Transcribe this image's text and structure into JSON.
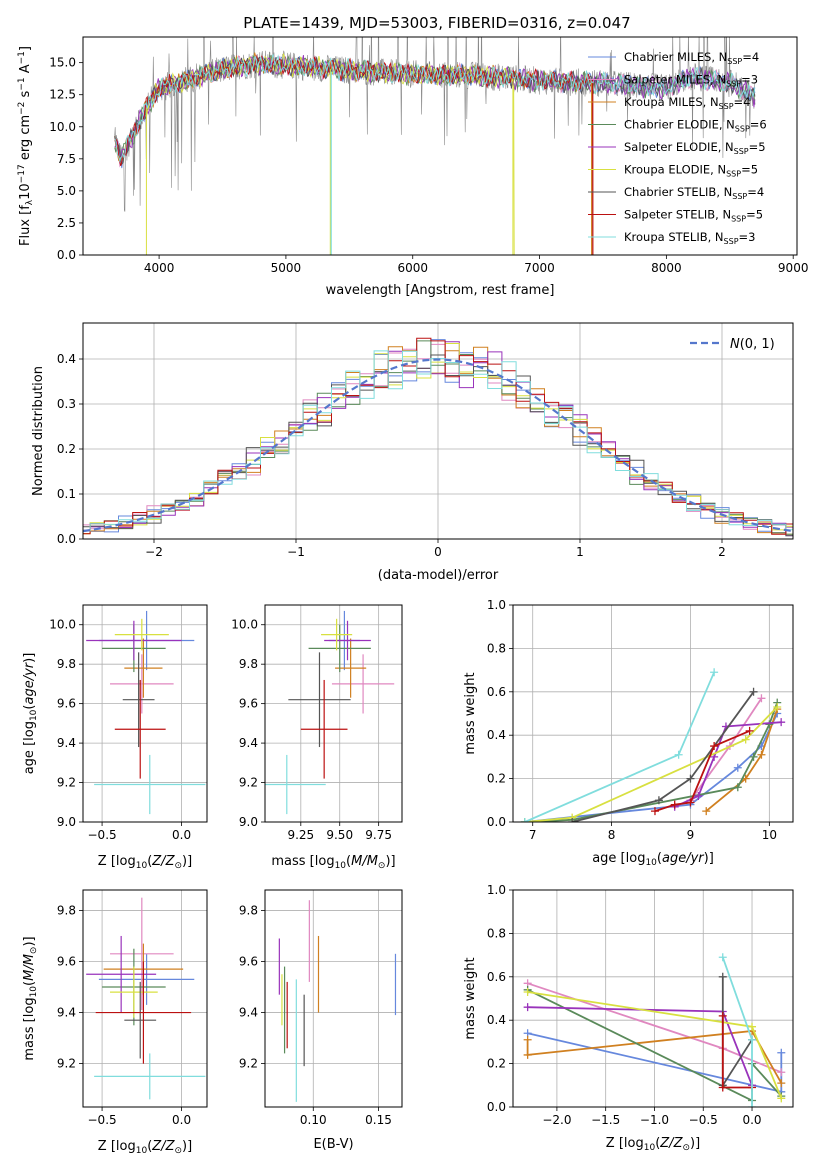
{
  "figure_title": "PLATE=1439, MJD=53003, FIBERID=0316, z=0.047",
  "colors": [
    "#6688dd",
    "#e088c0",
    "#d08020",
    "#5a8a5a",
    "#9933bb",
    "#d8e040",
    "#555555",
    "#bb1111",
    "#80dddd"
  ],
  "model_names": [
    "Chabrier MILES",
    "Salpeter MILES",
    "Kroupa MILES",
    "Chabrier ELODIE",
    "Salpeter ELODIE",
    "Kroupa ELODIE",
    "Chabrier STELIB",
    "Salpeter STELIB",
    "Kroupa STELIB"
  ],
  "chart_data": [
    {
      "id": "spectrum",
      "type": "line",
      "xlabel": "wavelength [Angstrom, rest frame]",
      "ylabel_parts": [
        "Flux [f",
        "λ",
        "10",
        "−17",
        " erg cm",
        "−2",
        " s",
        "−1",
        " A",
        "−1",
        "]"
      ],
      "xlim": [
        3400,
        9030
      ],
      "ylim": [
        0,
        17
      ],
      "xticks": [
        4000,
        5000,
        6000,
        7000,
        8000,
        9000
      ],
      "yticks": [
        0.0,
        2.5,
        5.0,
        7.5,
        10.0,
        12.5,
        15.0
      ],
      "ytick_labels": [
        "0.0",
        "2.5",
        "5.0",
        "7.5",
        "10.0",
        "12.5",
        "15.0"
      ],
      "legend_position": "right",
      "legend": [
        {
          "name": "Chabrier MILES, N",
          "sub": "SSP",
          "val": "=4"
        },
        {
          "name": "Salpeter MILES, N",
          "sub": "SSP",
          "val": "=3"
        },
        {
          "name": "Kroupa MILES, N",
          "sub": "SSP",
          "val": "=4"
        },
        {
          "name": "Chabrier ELODIE, N",
          "sub": "SSP",
          "val": "=6"
        },
        {
          "name": "Salpeter ELODIE, N",
          "sub": "SSP",
          "val": "=5"
        },
        {
          "name": "Kroupa ELODIE, N",
          "sub": "SSP",
          "val": "=5"
        },
        {
          "name": "Chabrier STELIB, N",
          "sub": "SSP",
          "val": "=4"
        },
        {
          "name": "Salpeter STELIB, N",
          "sub": "SSP",
          "val": "=5"
        },
        {
          "name": "Kroupa STELIB, N",
          "sub": "SSP",
          "val": "=3"
        }
      ],
      "data_color": "#888888",
      "data_range": [
        3650,
        8700
      ],
      "model_ranges": [
        [
          3650,
          8700
        ],
        [
          3650,
          8700
        ],
        [
          3650,
          7420
        ],
        [
          3650,
          8700
        ],
        [
          3650,
          8700
        ],
        [
          3900,
          6800
        ],
        [
          3650,
          8700
        ],
        [
          3650,
          7420
        ],
        [
          3650,
          8700
        ]
      ],
      "continuum": [
        [
          3650,
          9.0
        ],
        [
          3700,
          7.5
        ],
        [
          3800,
          9.5
        ],
        [
          3900,
          11.5
        ],
        [
          4000,
          13.0
        ],
        [
          4200,
          13.6
        ],
        [
          4400,
          14.2
        ],
        [
          4600,
          14.7
        ],
        [
          4800,
          14.9
        ],
        [
          5000,
          14.8
        ],
        [
          5500,
          14.4
        ],
        [
          6000,
          14.1
        ],
        [
          6500,
          14.0
        ],
        [
          7000,
          13.6
        ],
        [
          7500,
          13.4
        ],
        [
          8000,
          13.0
        ],
        [
          8200,
          13.9
        ],
        [
          8500,
          13.4
        ],
        [
          8700,
          12.4
        ]
      ],
      "drops": [
        [
          5350,
          5360,
          5
        ],
        [
          6790,
          6800,
          5
        ],
        [
          7410,
          7420,
          2
        ],
        [
          3900,
          3910,
          5
        ]
      ]
    },
    {
      "id": "residuals",
      "type": "bar",
      "xlabel": "(data-model)/error",
      "ylabel": "Normed distribution",
      "xlim": [
        -2.5,
        2.5
      ],
      "ylim": [
        0,
        0.48
      ],
      "xticks": [
        -2,
        -1,
        0,
        1,
        2
      ],
      "xtick_labels": [
        "−2",
        "−1",
        "0",
        "1",
        "2"
      ],
      "yticks": [
        0.0,
        0.1,
        0.2,
        0.3,
        0.4
      ],
      "ytick_labels": [
        "0.0",
        "0.1",
        "0.2",
        "0.3",
        "0.4"
      ],
      "grid": true,
      "bin_width": 0.1,
      "legend_position": "top-right",
      "legend": [
        {
          "name": "N(0,1)"
        }
      ],
      "reference_curve": {
        "type": "gaussian",
        "mean": 0,
        "sigma": 1,
        "color": "#5577cc"
      }
    },
    {
      "id": "age_vs_Z",
      "type": "errorbar",
      "xlabel": "Z [log10(Z/Z⊙)]",
      "ylabel": "age [log10(age/yr)]",
      "xlim": [
        -0.62,
        0.16
      ],
      "ylim": [
        9.0,
        10.1
      ],
      "xticks": [
        -0.5,
        0.0
      ],
      "xtick_labels": [
        "−0.5",
        "0.0"
      ],
      "yticks": [
        9.0,
        9.2,
        9.4,
        9.6,
        9.8,
        10.0
      ],
      "ytick_labels": [
        "9.0",
        "9.2",
        "9.4",
        "9.6",
        "9.8",
        "10.0"
      ],
      "grid": true,
      "points": [
        {
          "x": -0.22,
          "xerr": 0.3,
          "y": 9.92,
          "yerr": 0.15,
          "color": "#6688dd"
        },
        {
          "x": -0.25,
          "xerr": 0.2,
          "y": 9.7,
          "yerr": 0.15,
          "color": "#e088c0"
        },
        {
          "x": -0.24,
          "xerr": 0.12,
          "y": 9.78,
          "yerr": 0.15,
          "color": "#d08020"
        },
        {
          "x": -0.3,
          "xerr": 0.2,
          "y": 9.88,
          "yerr": 0.12,
          "color": "#5a8a5a"
        },
        {
          "x": -0.3,
          "xerr": 0.3,
          "y": 9.92,
          "yerr": 0.1,
          "color": "#9933bb"
        },
        {
          "x": -0.25,
          "xerr": 0.17,
          "y": 9.95,
          "yerr": 0.08,
          "color": "#d8e040"
        },
        {
          "x": -0.27,
          "xerr": 0.1,
          "y": 9.62,
          "yerr": 0.24,
          "color": "#555555"
        },
        {
          "x": -0.26,
          "xerr": 0.16,
          "y": 9.47,
          "yerr": 0.25,
          "color": "#bb1111"
        },
        {
          "x": -0.2,
          "xerr": 0.35,
          "y": 9.19,
          "yerr": 0.15,
          "color": "#80dddd"
        }
      ]
    },
    {
      "id": "age_vs_mass",
      "type": "errorbar",
      "xlabel": "mass [log10(M/M⊙)]",
      "ylabel": "",
      "xlim": [
        9.02,
        9.9
      ],
      "ylim": [
        9.0,
        10.1
      ],
      "xticks": [
        9.25,
        9.5,
        9.75
      ],
      "xtick_labels": [
        "9.25",
        "9.50",
        "9.75"
      ],
      "yticks": [
        9.0,
        9.2,
        9.4,
        9.6,
        9.8,
        10.0
      ],
      "ytick_labels": [
        "9.0",
        "9.2",
        "9.4",
        "9.6",
        "9.8",
        "10.0"
      ],
      "grid": true,
      "points": [
        {
          "x": 9.53,
          "xerr": 0.1,
          "y": 9.92,
          "yerr": 0.15,
          "color": "#6688dd"
        },
        {
          "x": 9.65,
          "xerr": 0.2,
          "y": 9.7,
          "yerr": 0.15,
          "color": "#e088c0"
        },
        {
          "x": 9.57,
          "xerr": 0.1,
          "y": 9.78,
          "yerr": 0.15,
          "color": "#d08020"
        },
        {
          "x": 9.5,
          "xerr": 0.2,
          "y": 9.88,
          "yerr": 0.12,
          "color": "#5a8a5a"
        },
        {
          "x": 9.55,
          "xerr": 0.15,
          "y": 9.92,
          "yerr": 0.1,
          "color": "#9933bb"
        },
        {
          "x": 9.48,
          "xerr": 0.1,
          "y": 9.95,
          "yerr": 0.08,
          "color": "#d8e040"
        },
        {
          "x": 9.37,
          "xerr": 0.2,
          "y": 9.62,
          "yerr": 0.24,
          "color": "#555555"
        },
        {
          "x": 9.4,
          "xerr": 0.15,
          "y": 9.47,
          "yerr": 0.25,
          "color": "#bb1111"
        },
        {
          "x": 9.16,
          "xerr": 0.25,
          "y": 9.19,
          "yerr": 0.15,
          "color": "#80dddd"
        }
      ]
    },
    {
      "id": "massweight_vs_age",
      "type": "line",
      "xlabel": "age [log10(age/yr)]",
      "ylabel": "mass weight",
      "xlim": [
        6.75,
        10.3
      ],
      "ylim": [
        0.0,
        1.0
      ],
      "xticks": [
        7,
        8,
        9,
        10
      ],
      "xtick_labels": [
        "7",
        "8",
        "9",
        "10"
      ],
      "yticks": [
        0.0,
        0.2,
        0.4,
        0.6,
        0.8,
        1.0
      ],
      "ytick_labels": [
        "0.0",
        "0.2",
        "0.4",
        "0.6",
        "0.8",
        "1.0"
      ],
      "grid": true,
      "series": [
        {
          "color": "#6688dd",
          "points": [
            [
              6.9,
              0.0
            ],
            [
              9.0,
              0.08
            ],
            [
              9.6,
              0.25
            ],
            [
              9.9,
              0.35
            ],
            [
              10.1,
              0.5
            ]
          ]
        },
        {
          "color": "#e088c0",
          "points": [
            [
              9.0,
              0.1
            ],
            [
              9.5,
              0.35
            ],
            [
              9.9,
              0.57
            ]
          ]
        },
        {
          "color": "#d08020",
          "points": [
            [
              9.2,
              0.05
            ],
            [
              9.7,
              0.2
            ],
            [
              9.9,
              0.31
            ],
            [
              10.1,
              0.52
            ]
          ]
        },
        {
          "color": "#5a8a5a",
          "points": [
            [
              6.9,
              0.0
            ],
            [
              7.5,
              0.01
            ],
            [
              9.6,
              0.16
            ],
            [
              9.8,
              0.3
            ],
            [
              10.0,
              0.45
            ],
            [
              10.1,
              0.55
            ]
          ]
        },
        {
          "color": "#9933bb",
          "points": [
            [
              8.8,
              0.07
            ],
            [
              9.1,
              0.12
            ],
            [
              9.3,
              0.3
            ],
            [
              9.45,
              0.44
            ],
            [
              10.15,
              0.46
            ]
          ]
        },
        {
          "color": "#d8e040",
          "points": [
            [
              6.9,
              0.0
            ],
            [
              7.5,
              0.02
            ],
            [
              9.7,
              0.38
            ],
            [
              10.1,
              0.53
            ]
          ]
        },
        {
          "color": "#555555",
          "points": [
            [
              7.5,
              0.0
            ],
            [
              8.6,
              0.1
            ],
            [
              9.0,
              0.2
            ],
            [
              9.8,
              0.6
            ]
          ]
        },
        {
          "color": "#bb1111",
          "points": [
            [
              8.55,
              0.05
            ],
            [
              8.8,
              0.08
            ],
            [
              9.0,
              0.09
            ],
            [
              9.3,
              0.35
            ],
            [
              9.75,
              0.42
            ]
          ]
        },
        {
          "color": "#80dddd",
          "points": [
            [
              6.9,
              0.0
            ],
            [
              8.85,
              0.31
            ],
            [
              9.3,
              0.69
            ]
          ]
        }
      ]
    },
    {
      "id": "mass_vs_Z",
      "type": "errorbar",
      "xlabel": "Z [log10(Z/Z⊙)]",
      "ylabel": "mass [log10(M/M⊙)]",
      "xlim": [
        -0.62,
        0.16
      ],
      "ylim": [
        9.03,
        9.88
      ],
      "xticks": [
        -0.5,
        0.0
      ],
      "xtick_labels": [
        "−0.5",
        "0.0"
      ],
      "yticks": [
        9.2,
        9.4,
        9.6,
        9.8
      ],
      "ytick_labels": [
        "9.2",
        "9.4",
        "9.6",
        "9.8"
      ],
      "grid": true,
      "points": [
        {
          "x": -0.22,
          "xerr": 0.3,
          "y": 9.53,
          "yerr": 0.1,
          "color": "#6688dd"
        },
        {
          "x": -0.25,
          "xerr": 0.2,
          "y": 9.63,
          "yerr": 0.22,
          "color": "#e088c0"
        },
        {
          "x": -0.24,
          "xerr": 0.25,
          "y": 9.57,
          "yerr": 0.1,
          "color": "#d08020"
        },
        {
          "x": -0.3,
          "xerr": 0.2,
          "y": 9.5,
          "yerr": 0.15,
          "color": "#5a8a5a"
        },
        {
          "x": -0.38,
          "xerr": 0.22,
          "y": 9.55,
          "yerr": 0.15,
          "color": "#9933bb"
        },
        {
          "x": -0.3,
          "xerr": 0.15,
          "y": 9.48,
          "yerr": 0.1,
          "color": "#d8e040"
        },
        {
          "x": -0.26,
          "xerr": 0.1,
          "y": 9.37,
          "yerr": 0.15,
          "color": "#555555"
        },
        {
          "x": -0.24,
          "xerr": 0.3,
          "y": 9.4,
          "yerr": 0.2,
          "color": "#bb1111"
        },
        {
          "x": -0.2,
          "xerr": 0.35,
          "y": 9.15,
          "yerr": 0.09,
          "color": "#80dddd"
        }
      ]
    },
    {
      "id": "mass_vs_EBV",
      "type": "errorbar",
      "xlabel": "E(B-V)",
      "ylabel": "",
      "xlim": [
        0.063,
        0.168
      ],
      "ylim": [
        9.03,
        9.88
      ],
      "xticks": [
        0.1,
        0.15
      ],
      "xtick_labels": [
        "0.10",
        "0.15"
      ],
      "yticks": [
        9.2,
        9.4,
        9.6,
        9.8
      ],
      "ytick_labels": [
        "9.2",
        "9.4",
        "9.6",
        "9.8"
      ],
      "grid": true,
      "points": [
        {
          "x": 0.163,
          "y": 9.51,
          "yerr": 0.12,
          "color": "#6688dd"
        },
        {
          "x": 0.097,
          "y": 9.68,
          "yerr": 0.16,
          "color": "#e088c0"
        },
        {
          "x": 0.104,
          "y": 9.55,
          "yerr": 0.15,
          "color": "#d08020"
        },
        {
          "x": 0.078,
          "y": 9.41,
          "yerr": 0.17,
          "color": "#5a8a5a"
        },
        {
          "x": 0.074,
          "y": 9.58,
          "yerr": 0.11,
          "color": "#9933bb"
        },
        {
          "x": 0.076,
          "y": 9.45,
          "yerr": 0.1,
          "color": "#d8e040"
        },
        {
          "x": 0.093,
          "y": 9.33,
          "yerr": 0.14,
          "color": "#555555"
        },
        {
          "x": 0.08,
          "y": 9.39,
          "yerr": 0.13,
          "color": "#bb1111"
        },
        {
          "x": 0.087,
          "y": 9.29,
          "yerr": 0.24,
          "color": "#80dddd"
        }
      ]
    },
    {
      "id": "massweight_vs_Z",
      "type": "line",
      "xlabel": "Z [log10(Z/Z⊙)]",
      "ylabel": "mass weight",
      "xlim": [
        -2.45,
        0.42
      ],
      "ylim": [
        0.0,
        1.0
      ],
      "xticks": [
        -2.0,
        -1.5,
        -1.0,
        -0.5,
        0.0
      ],
      "xtick_labels": [
        "−2.0",
        "−1.5",
        "−1.0",
        "−0.5",
        "0.0"
      ],
      "yticks": [
        0.0,
        0.2,
        0.4,
        0.6,
        0.8,
        1.0
      ],
      "ytick_labels": [
        "0.0",
        "0.2",
        "0.4",
        "0.6",
        "0.8",
        "1.0"
      ],
      "grid": true,
      "series": [
        {
          "color": "#6688dd",
          "points": [
            [
              -2.3,
              0.34
            ],
            [
              0.3,
              0.07
            ],
            [
              0.3,
              0.25
            ]
          ]
        },
        {
          "color": "#e088c0",
          "points": [
            [
              -2.3,
              0.57
            ],
            [
              -0.3,
              0.27
            ],
            [
              0.3,
              0.16
            ]
          ]
        },
        {
          "color": "#d08020",
          "points": [
            [
              -2.3,
              0.31
            ],
            [
              -2.3,
              0.24
            ],
            [
              0.0,
              0.35
            ],
            [
              0.3,
              0.11
            ]
          ]
        },
        {
          "color": "#5a8a5a",
          "points": [
            [
              -2.3,
              0.54
            ],
            [
              0.0,
              0.03
            ],
            [
              0.0,
              0.2
            ],
            [
              0.3,
              0.05
            ]
          ]
        },
        {
          "color": "#9933bb",
          "points": [
            [
              -2.3,
              0.46
            ],
            [
              -0.3,
              0.44
            ],
            [
              0.0,
              0.1
            ]
          ]
        },
        {
          "color": "#d8e040",
          "points": [
            [
              -2.3,
              0.53
            ],
            [
              0.0,
              0.37
            ],
            [
              0.3,
              0.04
            ]
          ]
        },
        {
          "color": "#555555",
          "points": [
            [
              -0.3,
              0.6
            ],
            [
              -0.3,
              0.1
            ],
            [
              0.0,
              0.31
            ]
          ]
        },
        {
          "color": "#bb1111",
          "points": [
            [
              -0.3,
              0.42
            ],
            [
              -0.3,
              0.09
            ],
            [
              0.0,
              0.09
            ]
          ]
        },
        {
          "color": "#80dddd",
          "points": [
            [
              -0.3,
              0.69
            ],
            [
              0.0,
              0.31
            ],
            [
              0.0,
              0.0
            ]
          ]
        }
      ]
    }
  ]
}
